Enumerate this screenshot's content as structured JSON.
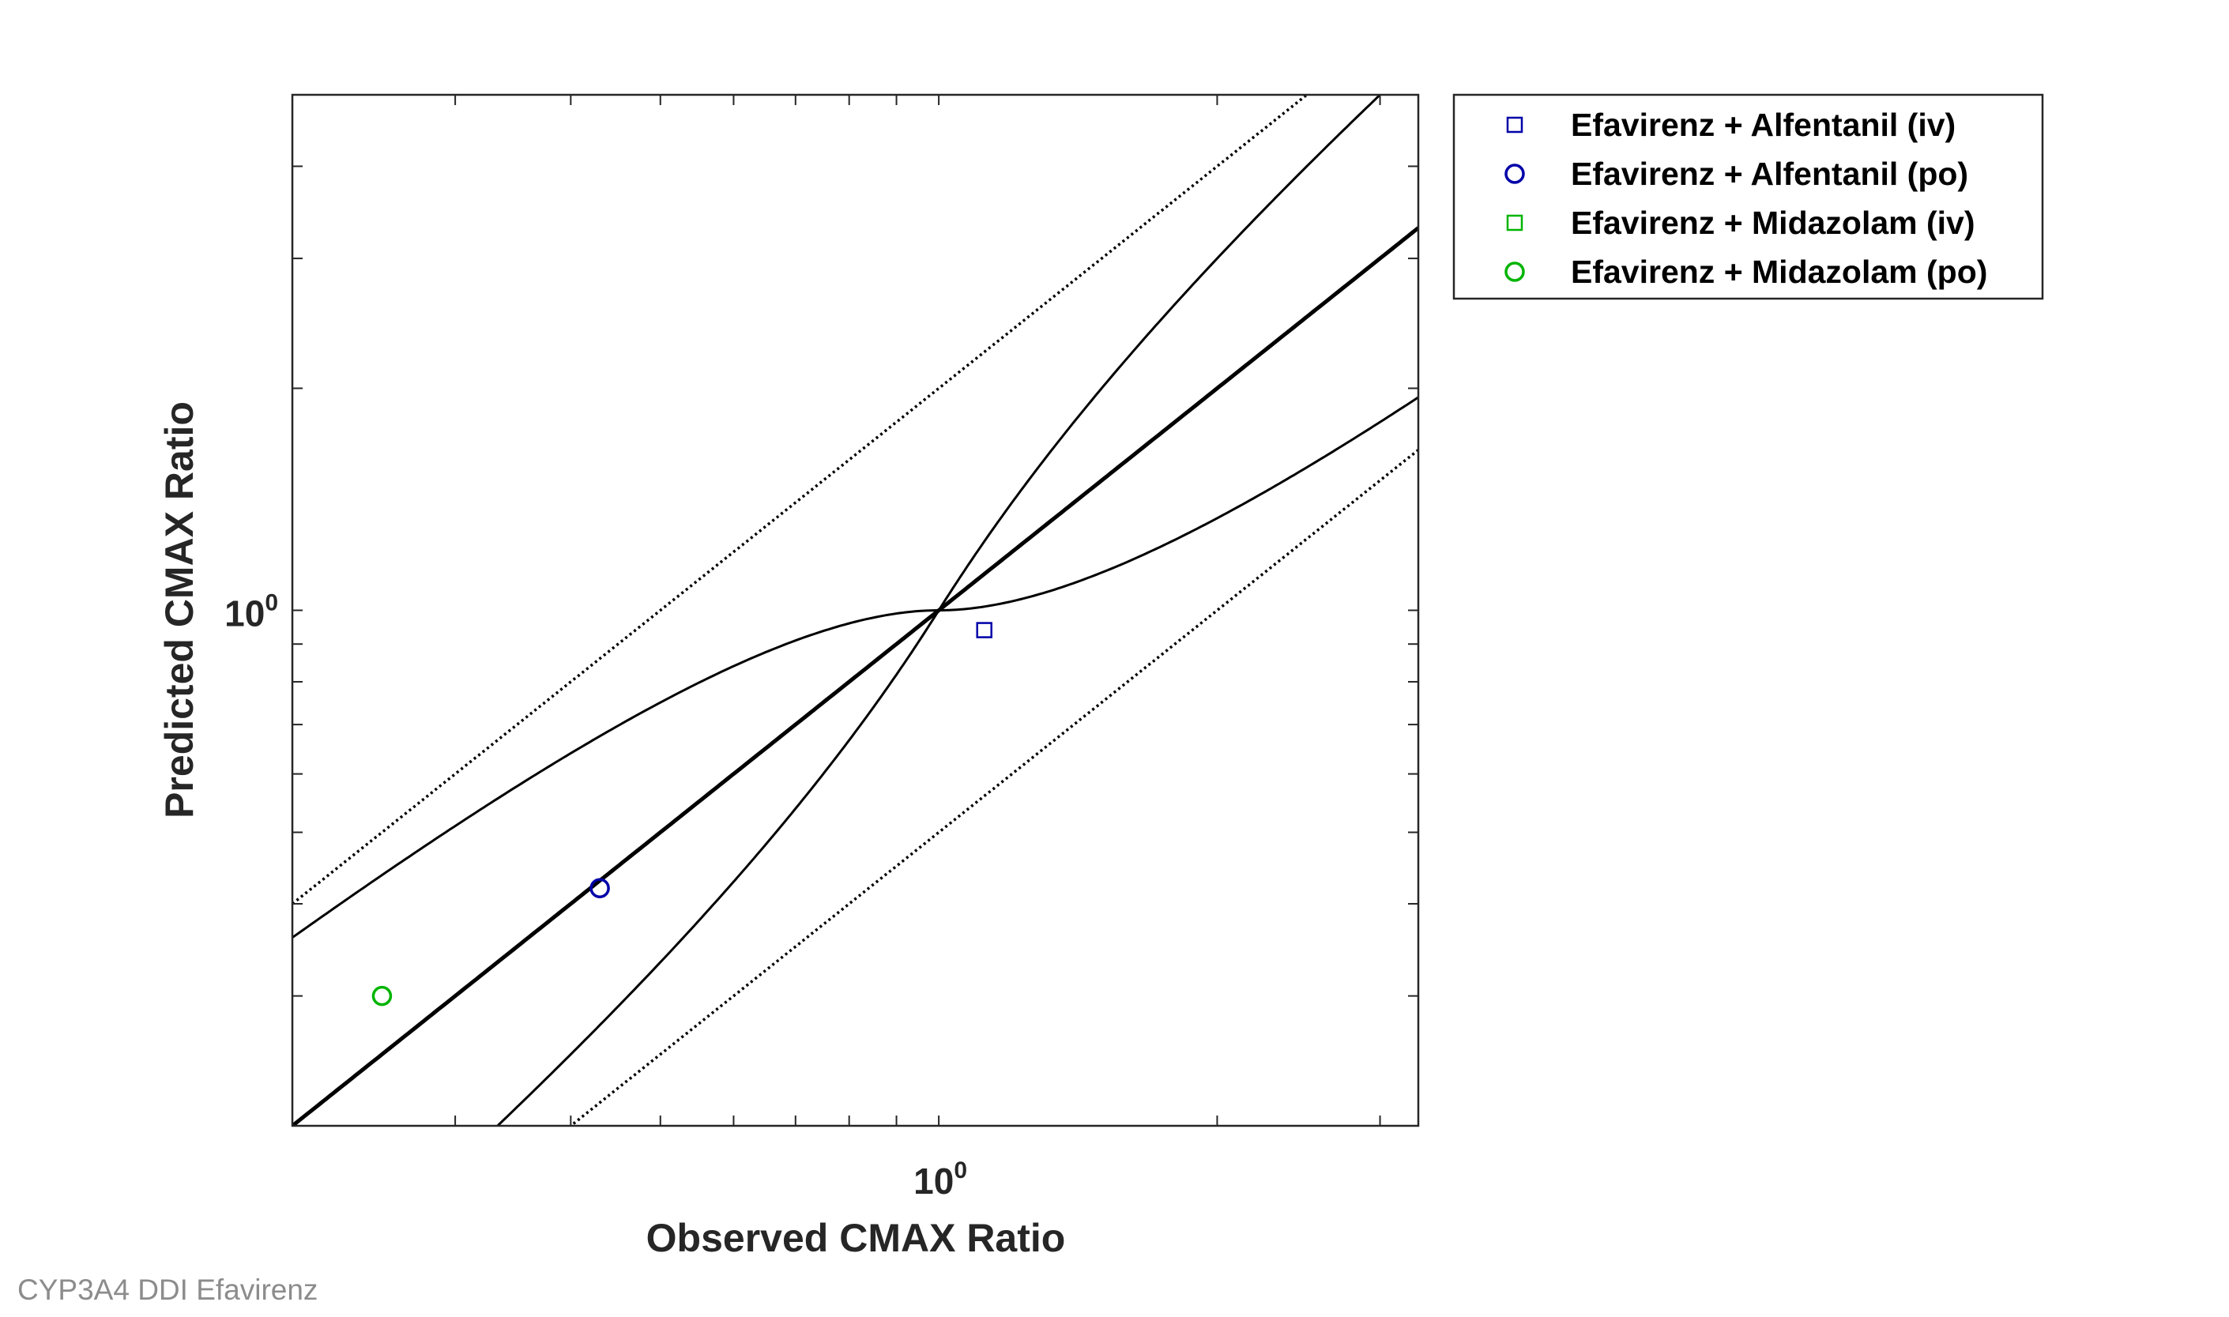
{
  "chart_data": {
    "type": "scatter",
    "xlabel": "Observed CMAX Ratio",
    "ylabel": "Predicted CMAX Ratio",
    "x_scale": "log",
    "y_scale": "log",
    "xlim": [
      0.2,
      3.3
    ],
    "ylim": [
      0.2,
      5.0
    ],
    "x_ticks": [
      {
        "base": "10",
        "exp": "0",
        "value": 1
      }
    ],
    "y_ticks": [
      {
        "base": "10",
        "exp": "0",
        "value": 1
      }
    ],
    "grid": false,
    "legend_position": "outside-top-right",
    "series": [
      {
        "name": "Efavirenz + Alfentanil (iv)",
        "marker": "square",
        "color": "#0000a8",
        "x": [
          1.12
        ],
        "y": [
          0.94
        ]
      },
      {
        "name": "Efavirenz + Alfentanil (po)",
        "marker": "circle",
        "color": "#0000a8",
        "x": [
          0.43
        ],
        "y": [
          0.42
        ]
      },
      {
        "name": "Efavirenz + Midazolam (iv)",
        "marker": "square",
        "color": "#00b400",
        "x": [],
        "y": []
      },
      {
        "name": "Efavirenz + Midazolam (po)",
        "marker": "circle",
        "color": "#00b400",
        "x": [
          0.25
        ],
        "y": [
          0.3
        ]
      }
    ],
    "reference_lines": {
      "identity": true,
      "fold_bounds": 2,
      "guest_limits": true
    }
  },
  "footer": {
    "text": "CYP3A4 DDI Efavirenz"
  }
}
